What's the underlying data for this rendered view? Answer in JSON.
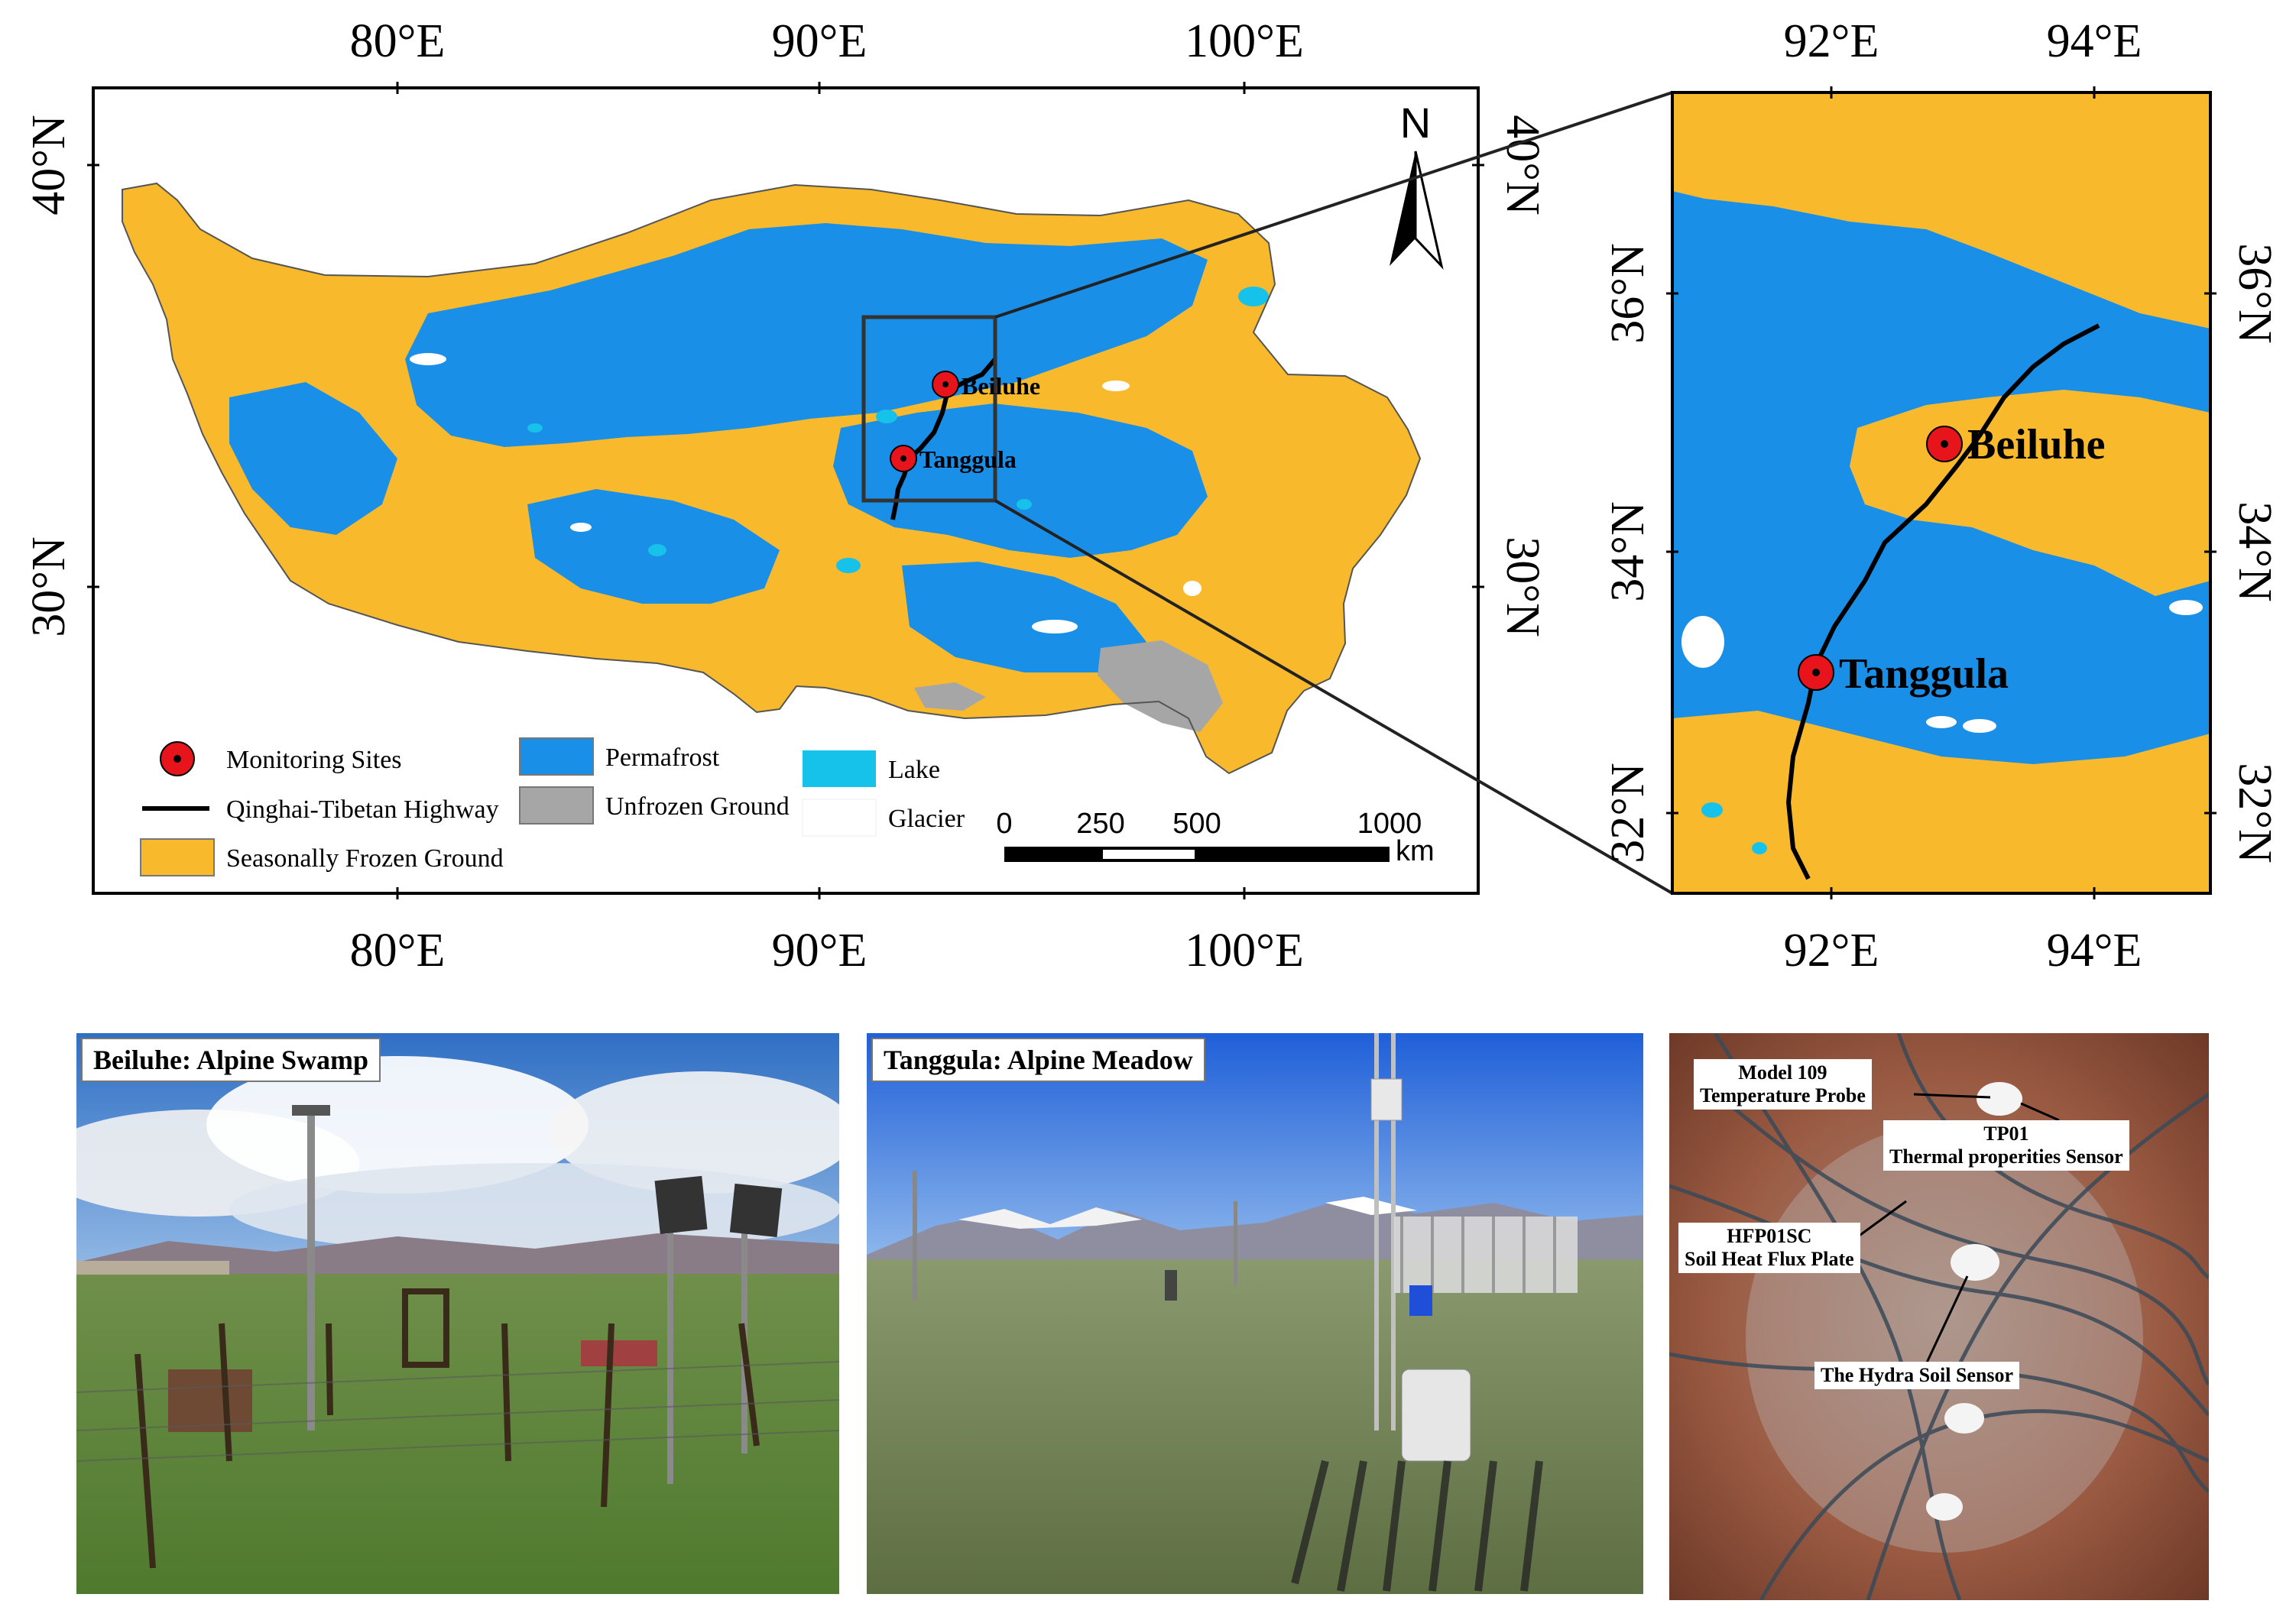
{
  "main_map": {
    "lon_labels": [
      "80°E",
      "90°E",
      "100°E"
    ],
    "lat_labels": [
      "40°N",
      "30°N"
    ],
    "north_arrow": "N",
    "sites": [
      "Beiluhe",
      "Tanggula"
    ],
    "scale_bar": {
      "ticks": [
        "0",
        "250",
        "500",
        "1000"
      ],
      "unit": "km"
    },
    "legend": {
      "monitoring_sites": "Monitoring Sites",
      "highway": "Qinghai-Tibetan Highway",
      "seasonal": "Seasonally Frozen Ground",
      "permafrost": "Permafrost",
      "unfrozen": "Unfrozen Ground",
      "lake": "Lake",
      "glacier": "Glacier"
    },
    "colors": {
      "permafrost": "#1a8fe8",
      "seasonal": "#f8ba2c",
      "unfrozen": "#a6a6a6",
      "lake": "#17c2ea",
      "glacier": "#ffffff",
      "site": "#e8141c",
      "highway": "#000000"
    }
  },
  "inset_map": {
    "lon_labels": [
      "92°E",
      "94°E"
    ],
    "lat_labels": [
      "36°N",
      "34°N",
      "32°N"
    ],
    "sites": [
      "Beiluhe",
      "Tanggula"
    ]
  },
  "photos": {
    "beiluhe": {
      "label": "Beiluhe: Alpine Swamp"
    },
    "tanggula": {
      "label": "Tanggula: Alpine Meadow"
    },
    "sensors": {
      "probe_line1": "Model 109",
      "probe_line2": "Temperature Probe",
      "tp_line1": "TP01",
      "tp_line2": "Thermal properities Sensor",
      "hfp_line1": "HFP01SC",
      "hfp_line2": "Soil Heat Flux Plate",
      "hydra": "The Hydra Soil Sensor"
    }
  }
}
